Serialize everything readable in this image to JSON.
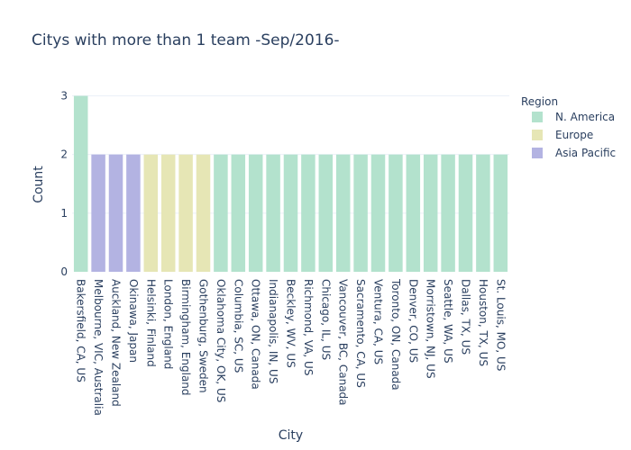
{
  "chart_data": {
    "type": "bar",
    "title": "Citys with more than 1 team -Sep/2016-",
    "xlabel": "City",
    "ylabel": "Count",
    "ylim": [
      0,
      3.1
    ],
    "yticks": [
      0,
      1,
      2,
      3
    ],
    "grid": true,
    "legend_position": "top-right",
    "legend_title": "Region",
    "regions": [
      {
        "name": "N. America",
        "color": "#b3e2cd"
      },
      {
        "name": "Europe",
        "color": "#e6e6b5"
      },
      {
        "name": "Asia Pacific",
        "color": "#b3b3e2"
      }
    ],
    "categories": [
      "Bakersfield, CA, US",
      "Melbourne, VIC, Australia",
      "Auckland, New Zealand",
      "Okinawa, Japan",
      "Helsinki, Finland",
      "London, England",
      "Birmingham, England",
      "Gothenburg, Sweden",
      "Oklahoma City, OK, US",
      "Columbia, SC, US",
      "Ottawa, ON, Canada",
      "Indianapolis, IN, US",
      "Beckley, WV, US",
      "Richmond, VA, US",
      "Chicago, IL, US",
      "Vancouver, BC, Canada",
      "Sacramento, CA, US",
      "Ventura, CA, US",
      "Toronto, ON, Canada",
      "Denver, CO, US",
      "Morristown, NJ, US",
      "Seattle, WA, US",
      "Dallas, TX, US",
      "Houston, TX, US",
      "St. Louis, MO, US"
    ],
    "values": [
      3,
      2,
      2,
      2,
      2,
      2,
      2,
      2,
      2,
      2,
      2,
      2,
      2,
      2,
      2,
      2,
      2,
      2,
      2,
      2,
      2,
      2,
      2,
      2,
      2
    ],
    "region_of": [
      "N. America",
      "Asia Pacific",
      "Asia Pacific",
      "Asia Pacific",
      "Europe",
      "Europe",
      "Europe",
      "Europe",
      "N. America",
      "N. America",
      "N. America",
      "N. America",
      "N. America",
      "N. America",
      "N. America",
      "N. America",
      "N. America",
      "N. America",
      "N. America",
      "N. America",
      "N. America",
      "N. America",
      "N. America",
      "N. America",
      "N. America"
    ]
  }
}
